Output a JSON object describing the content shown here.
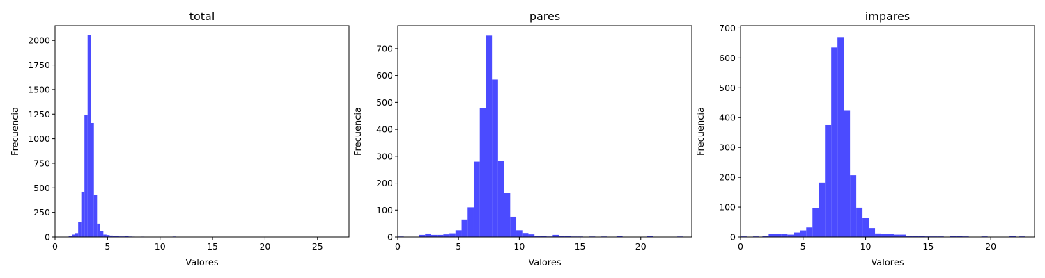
{
  "chart_data": [
    {
      "type": "bar",
      "title": "total",
      "xlabel": "Valores",
      "ylabel": "Frecuencia",
      "xlim": [
        0,
        28
      ],
      "ylim": [
        0,
        2150
      ],
      "xticks": [
        0,
        5,
        10,
        15,
        20,
        25
      ],
      "yticks": [
        0,
        250,
        500,
        750,
        1000,
        1250,
        1500,
        1750,
        2000
      ],
      "color": "#4b4bff",
      "grid": false,
      "bin_width": 0.3,
      "bins": [
        {
          "x": 1.0,
          "y": 3
        },
        {
          "x": 1.3,
          "y": 8
        },
        {
          "x": 1.6,
          "y": 25
        },
        {
          "x": 1.9,
          "y": 40
        },
        {
          "x": 2.2,
          "y": 155
        },
        {
          "x": 2.5,
          "y": 460
        },
        {
          "x": 2.8,
          "y": 1240
        },
        {
          "x": 3.1,
          "y": 2055
        },
        {
          "x": 3.4,
          "y": 1160
        },
        {
          "x": 3.7,
          "y": 425
        },
        {
          "x": 4.0,
          "y": 135
        },
        {
          "x": 4.3,
          "y": 60
        },
        {
          "x": 4.6,
          "y": 25
        },
        {
          "x": 4.9,
          "y": 20
        },
        {
          "x": 5.2,
          "y": 15
        },
        {
          "x": 5.5,
          "y": 12
        },
        {
          "x": 5.8,
          "y": 8
        },
        {
          "x": 6.1,
          "y": 6
        },
        {
          "x": 6.4,
          "y": 6
        },
        {
          "x": 6.7,
          "y": 8
        },
        {
          "x": 7.0,
          "y": 5
        },
        {
          "x": 7.3,
          "y": 4
        },
        {
          "x": 7.6,
          "y": 3
        },
        {
          "x": 8.2,
          "y": 4
        },
        {
          "x": 8.5,
          "y": 3
        },
        {
          "x": 9.7,
          "y": 3
        },
        {
          "x": 11.2,
          "y": 5
        },
        {
          "x": 13.6,
          "y": 3
        }
      ]
    },
    {
      "type": "bar",
      "title": "pares",
      "xlabel": "Valores",
      "ylabel": "Frecuencia",
      "xlim": [
        0,
        24.2
      ],
      "ylim": [
        0,
        785
      ],
      "xticks": [
        0,
        5,
        10,
        15,
        20
      ],
      "yticks": [
        0,
        100,
        200,
        300,
        400,
        500,
        600,
        700
      ],
      "color": "#4b4bff",
      "grid": false,
      "bin_width": 0.5,
      "bins": [
        {
          "x": 0.0,
          "y": 2
        },
        {
          "x": 1.75,
          "y": 8
        },
        {
          "x": 2.25,
          "y": 13
        },
        {
          "x": 2.75,
          "y": 8
        },
        {
          "x": 3.25,
          "y": 8
        },
        {
          "x": 3.75,
          "y": 10
        },
        {
          "x": 4.25,
          "y": 14
        },
        {
          "x": 4.75,
          "y": 25
        },
        {
          "x": 5.25,
          "y": 65
        },
        {
          "x": 5.75,
          "y": 110
        },
        {
          "x": 6.25,
          "y": 280
        },
        {
          "x": 6.75,
          "y": 478
        },
        {
          "x": 7.25,
          "y": 748
        },
        {
          "x": 7.75,
          "y": 585
        },
        {
          "x": 8.25,
          "y": 283
        },
        {
          "x": 8.75,
          "y": 165
        },
        {
          "x": 9.25,
          "y": 75
        },
        {
          "x": 9.75,
          "y": 25
        },
        {
          "x": 10.25,
          "y": 15
        },
        {
          "x": 10.75,
          "y": 10
        },
        {
          "x": 11.25,
          "y": 5
        },
        {
          "x": 11.75,
          "y": 4
        },
        {
          "x": 12.25,
          "y": 2
        },
        {
          "x": 12.75,
          "y": 8
        },
        {
          "x": 13.25,
          "y": 3
        },
        {
          "x": 13.75,
          "y": 3
        },
        {
          "x": 14.25,
          "y": 2
        },
        {
          "x": 14.75,
          "y": 2
        },
        {
          "x": 15.75,
          "y": 2
        },
        {
          "x": 16.75,
          "y": 2
        },
        {
          "x": 18.0,
          "y": 3
        },
        {
          "x": 20.5,
          "y": 3
        },
        {
          "x": 23.0,
          "y": 2
        }
      ]
    },
    {
      "type": "bar",
      "title": "impares",
      "xlabel": "Valores",
      "ylabel": "Frecuencia",
      "xlim": [
        0,
        23.5
      ],
      "ylim": [
        0,
        708
      ],
      "xticks": [
        0,
        5,
        10,
        15,
        20
      ],
      "yticks": [
        0,
        100,
        200,
        300,
        400,
        500,
        600,
        700
      ],
      "color": "#4b4bff",
      "grid": false,
      "bin_width": 0.5,
      "bins": [
        {
          "x": 0.0,
          "y": 2
        },
        {
          "x": 1.0,
          "y": 2
        },
        {
          "x": 1.75,
          "y": 3
        },
        {
          "x": 2.25,
          "y": 10
        },
        {
          "x": 2.75,
          "y": 10
        },
        {
          "x": 3.25,
          "y": 10
        },
        {
          "x": 3.75,
          "y": 8
        },
        {
          "x": 4.25,
          "y": 15
        },
        {
          "x": 4.75,
          "y": 22
        },
        {
          "x": 5.25,
          "y": 32
        },
        {
          "x": 5.75,
          "y": 97
        },
        {
          "x": 6.25,
          "y": 182
        },
        {
          "x": 6.75,
          "y": 375
        },
        {
          "x": 7.25,
          "y": 635
        },
        {
          "x": 7.75,
          "y": 670
        },
        {
          "x": 8.25,
          "y": 425
        },
        {
          "x": 8.75,
          "y": 207
        },
        {
          "x": 9.25,
          "y": 98
        },
        {
          "x": 9.75,
          "y": 65
        },
        {
          "x": 10.25,
          "y": 30
        },
        {
          "x": 10.75,
          "y": 12
        },
        {
          "x": 11.25,
          "y": 10
        },
        {
          "x": 11.75,
          "y": 10
        },
        {
          "x": 12.25,
          "y": 8
        },
        {
          "x": 12.75,
          "y": 8
        },
        {
          "x": 13.25,
          "y": 4
        },
        {
          "x": 13.75,
          "y": 3
        },
        {
          "x": 14.25,
          "y": 4
        },
        {
          "x": 14.75,
          "y": 2
        },
        {
          "x": 15.25,
          "y": 2
        },
        {
          "x": 15.75,
          "y": 2
        },
        {
          "x": 16.75,
          "y": 3
        },
        {
          "x": 17.25,
          "y": 3
        },
        {
          "x": 17.75,
          "y": 2
        },
        {
          "x": 19.25,
          "y": 2
        },
        {
          "x": 21.5,
          "y": 3
        },
        {
          "x": 22.25,
          "y": 2
        }
      ]
    }
  ]
}
